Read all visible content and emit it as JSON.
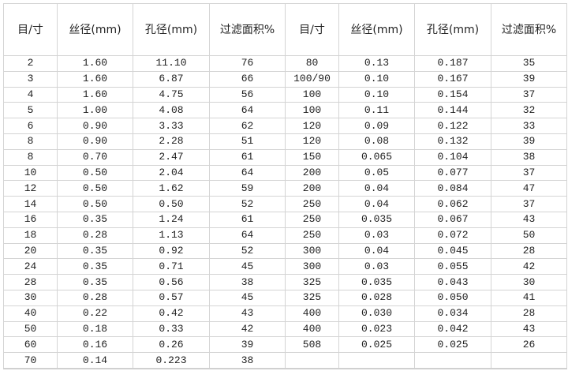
{
  "headers": [
    "目/寸",
    "丝径(mm)",
    "孔径(mm)",
    "过滤面积%",
    "目/寸",
    "丝径(mm)",
    "孔径(mm)",
    "过滤面积%"
  ],
  "rows": [
    [
      "2",
      "1.60",
      "11.10",
      "76",
      "80",
      "0.13",
      "0.187",
      "35"
    ],
    [
      "3",
      "1.60",
      "6.87",
      "66",
      "100/90",
      "0.10",
      "0.167",
      "39"
    ],
    [
      "4",
      "1.60",
      "4.75",
      "56",
      "100",
      "0.10",
      "0.154",
      "37"
    ],
    [
      "5",
      "1.00",
      "4.08",
      "64",
      "100",
      "0.11",
      "0.144",
      "32"
    ],
    [
      "6",
      "0.90",
      "3.33",
      "62",
      "120",
      "0.09",
      "0.122",
      "33"
    ],
    [
      "8",
      "0.90",
      "2.28",
      "51",
      "120",
      "0.08",
      "0.132",
      "39"
    ],
    [
      "8",
      "0.70",
      "2.47",
      "61",
      "150",
      "0.065",
      "0.104",
      "38"
    ],
    [
      "10",
      "0.50",
      "2.04",
      "64",
      "200",
      "0.05",
      "0.077",
      "37"
    ],
    [
      "12",
      "0.50",
      "1.62",
      "59",
      "200",
      "0.04",
      "0.084",
      "47"
    ],
    [
      "14",
      "0.50",
      "0.50",
      "52",
      "250",
      "0.04",
      "0.062",
      "37"
    ],
    [
      "16",
      "0.35",
      "1.24",
      "61",
      "250",
      "0.035",
      "0.067",
      "43"
    ],
    [
      "18",
      "0.28",
      "1.13",
      "64",
      "250",
      "0.03",
      "0.072",
      "50"
    ],
    [
      "20",
      "0.35",
      "0.92",
      "52",
      "300",
      "0.04",
      "0.045",
      "28"
    ],
    [
      "24",
      "0.35",
      "0.71",
      "45",
      "300",
      "0.03",
      "0.055",
      "42"
    ],
    [
      "28",
      "0.35",
      "0.56",
      "38",
      "325",
      "0.035",
      "0.043",
      "30"
    ],
    [
      "30",
      "0.28",
      "0.57",
      "45",
      "325",
      "0.028",
      "0.050",
      "41"
    ],
    [
      "40",
      "0.22",
      "0.42",
      "43",
      "400",
      "0.030",
      "0.034",
      "28"
    ],
    [
      "50",
      "0.18",
      "0.33",
      "42",
      "400",
      "0.023",
      "0.042",
      "43"
    ],
    [
      "60",
      "0.16",
      "0.26",
      "39",
      "508",
      "0.025",
      "0.025",
      "26"
    ],
    [
      "70",
      "0.14",
      "0.223",
      "38",
      "",
      "",
      "",
      ""
    ]
  ]
}
